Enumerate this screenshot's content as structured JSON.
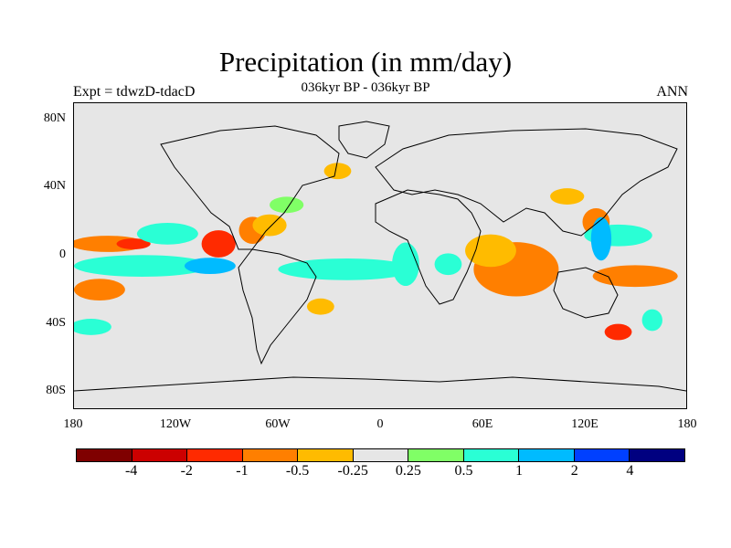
{
  "title": "Precipitation (in mm/day)",
  "subtitle": "036kyr BP - 036kyr BP",
  "left_label": "Expt = tdwzD-tdacD",
  "right_label": "ANN",
  "lat_ticks": [
    "80N",
    "40N",
    "0",
    "40S",
    "80S"
  ],
  "lon_ticks": [
    "180",
    "120W",
    "60W",
    "0",
    "60E",
    "120E",
    "180"
  ],
  "colorbar": {
    "colors": [
      "#7f0000",
      "#cc0000",
      "#ff2a00",
      "#ff7f00",
      "#ffbb00",
      "#e6e6e6",
      "#80ff66",
      "#2affd5",
      "#00bbff",
      "#0040ff",
      "#000080"
    ],
    "labels": [
      "-4",
      "-2",
      "-1",
      "-0.5",
      "-0.25",
      "0.25",
      "0.5",
      "1",
      "2",
      "4"
    ]
  },
  "chart_data": {
    "type": "heatmap",
    "map": "global precipitation difference",
    "lon_range": [
      -180,
      180
    ],
    "lat_range": [
      -90,
      90
    ],
    "patches": [
      {
        "lon": -160,
        "lat": 7,
        "dlon": 22,
        "dlat": 3,
        "color": "#ff7f00"
      },
      {
        "lon": -145,
        "lat": 7,
        "dlon": 10,
        "dlat": 2,
        "color": "#ff2a00"
      },
      {
        "lon": -125,
        "lat": 13,
        "dlon": 18,
        "dlat": 4,
        "color": "#2affd5"
      },
      {
        "lon": -95,
        "lat": 7,
        "dlon": 10,
        "dlat": 5,
        "color": "#ff2a00"
      },
      {
        "lon": -75,
        "lat": 15,
        "dlon": 8,
        "dlat": 5,
        "color": "#ff7f00"
      },
      {
        "lon": -65,
        "lat": 18,
        "dlon": 10,
        "dlat": 4,
        "color": "#ffbb00"
      },
      {
        "lon": -140,
        "lat": -6,
        "dlon": 40,
        "dlat": 4,
        "color": "#2affd5"
      },
      {
        "lon": -100,
        "lat": -6,
        "dlon": 15,
        "dlat": 3,
        "color": "#00bbff"
      },
      {
        "lon": -165,
        "lat": -20,
        "dlon": 15,
        "dlat": 4,
        "color": "#ff7f00"
      },
      {
        "lon": -170,
        "lat": -42,
        "dlon": 12,
        "dlat": 3,
        "color": "#2affd5"
      },
      {
        "lon": -20,
        "lat": -8,
        "dlon": 40,
        "dlat": 4,
        "color": "#2affd5"
      },
      {
        "lon": 15,
        "lat": -5,
        "dlon": 8,
        "dlat": 8,
        "color": "#2affd5"
      },
      {
        "lon": 40,
        "lat": -5,
        "dlon": 8,
        "dlat": 4,
        "color": "#2affd5"
      },
      {
        "lon": 80,
        "lat": -8,
        "dlon": 25,
        "dlat": 10,
        "color": "#ff7f00"
      },
      {
        "lon": 65,
        "lat": 3,
        "dlon": 15,
        "dlat": 6,
        "color": "#ffbb00"
      },
      {
        "lon": 127,
        "lat": 20,
        "dlon": 8,
        "dlat": 5,
        "color": "#ff7f00"
      },
      {
        "lon": 140,
        "lat": 12,
        "dlon": 20,
        "dlat": 4,
        "color": "#2affd5"
      },
      {
        "lon": 130,
        "lat": 10,
        "dlon": 6,
        "dlat": 8,
        "color": "#00bbff"
      },
      {
        "lon": 150,
        "lat": -12,
        "dlon": 25,
        "dlat": 4,
        "color": "#ff7f00"
      },
      {
        "lon": 140,
        "lat": -45,
        "dlon": 8,
        "dlat": 3,
        "color": "#ff2a00"
      },
      {
        "lon": 160,
        "lat": -38,
        "dlon": 6,
        "dlat": 4,
        "color": "#2affd5"
      },
      {
        "lon": -55,
        "lat": 30,
        "dlon": 10,
        "dlat": 3,
        "color": "#80ff66"
      },
      {
        "lon": -25,
        "lat": 50,
        "dlon": 8,
        "dlat": 3,
        "color": "#ffbb00"
      },
      {
        "lon": 110,
        "lat": 35,
        "dlon": 10,
        "dlat": 3,
        "color": "#ffbb00"
      },
      {
        "lon": -35,
        "lat": -30,
        "dlon": 8,
        "dlat": 3,
        "color": "#ffbb00"
      }
    ]
  }
}
